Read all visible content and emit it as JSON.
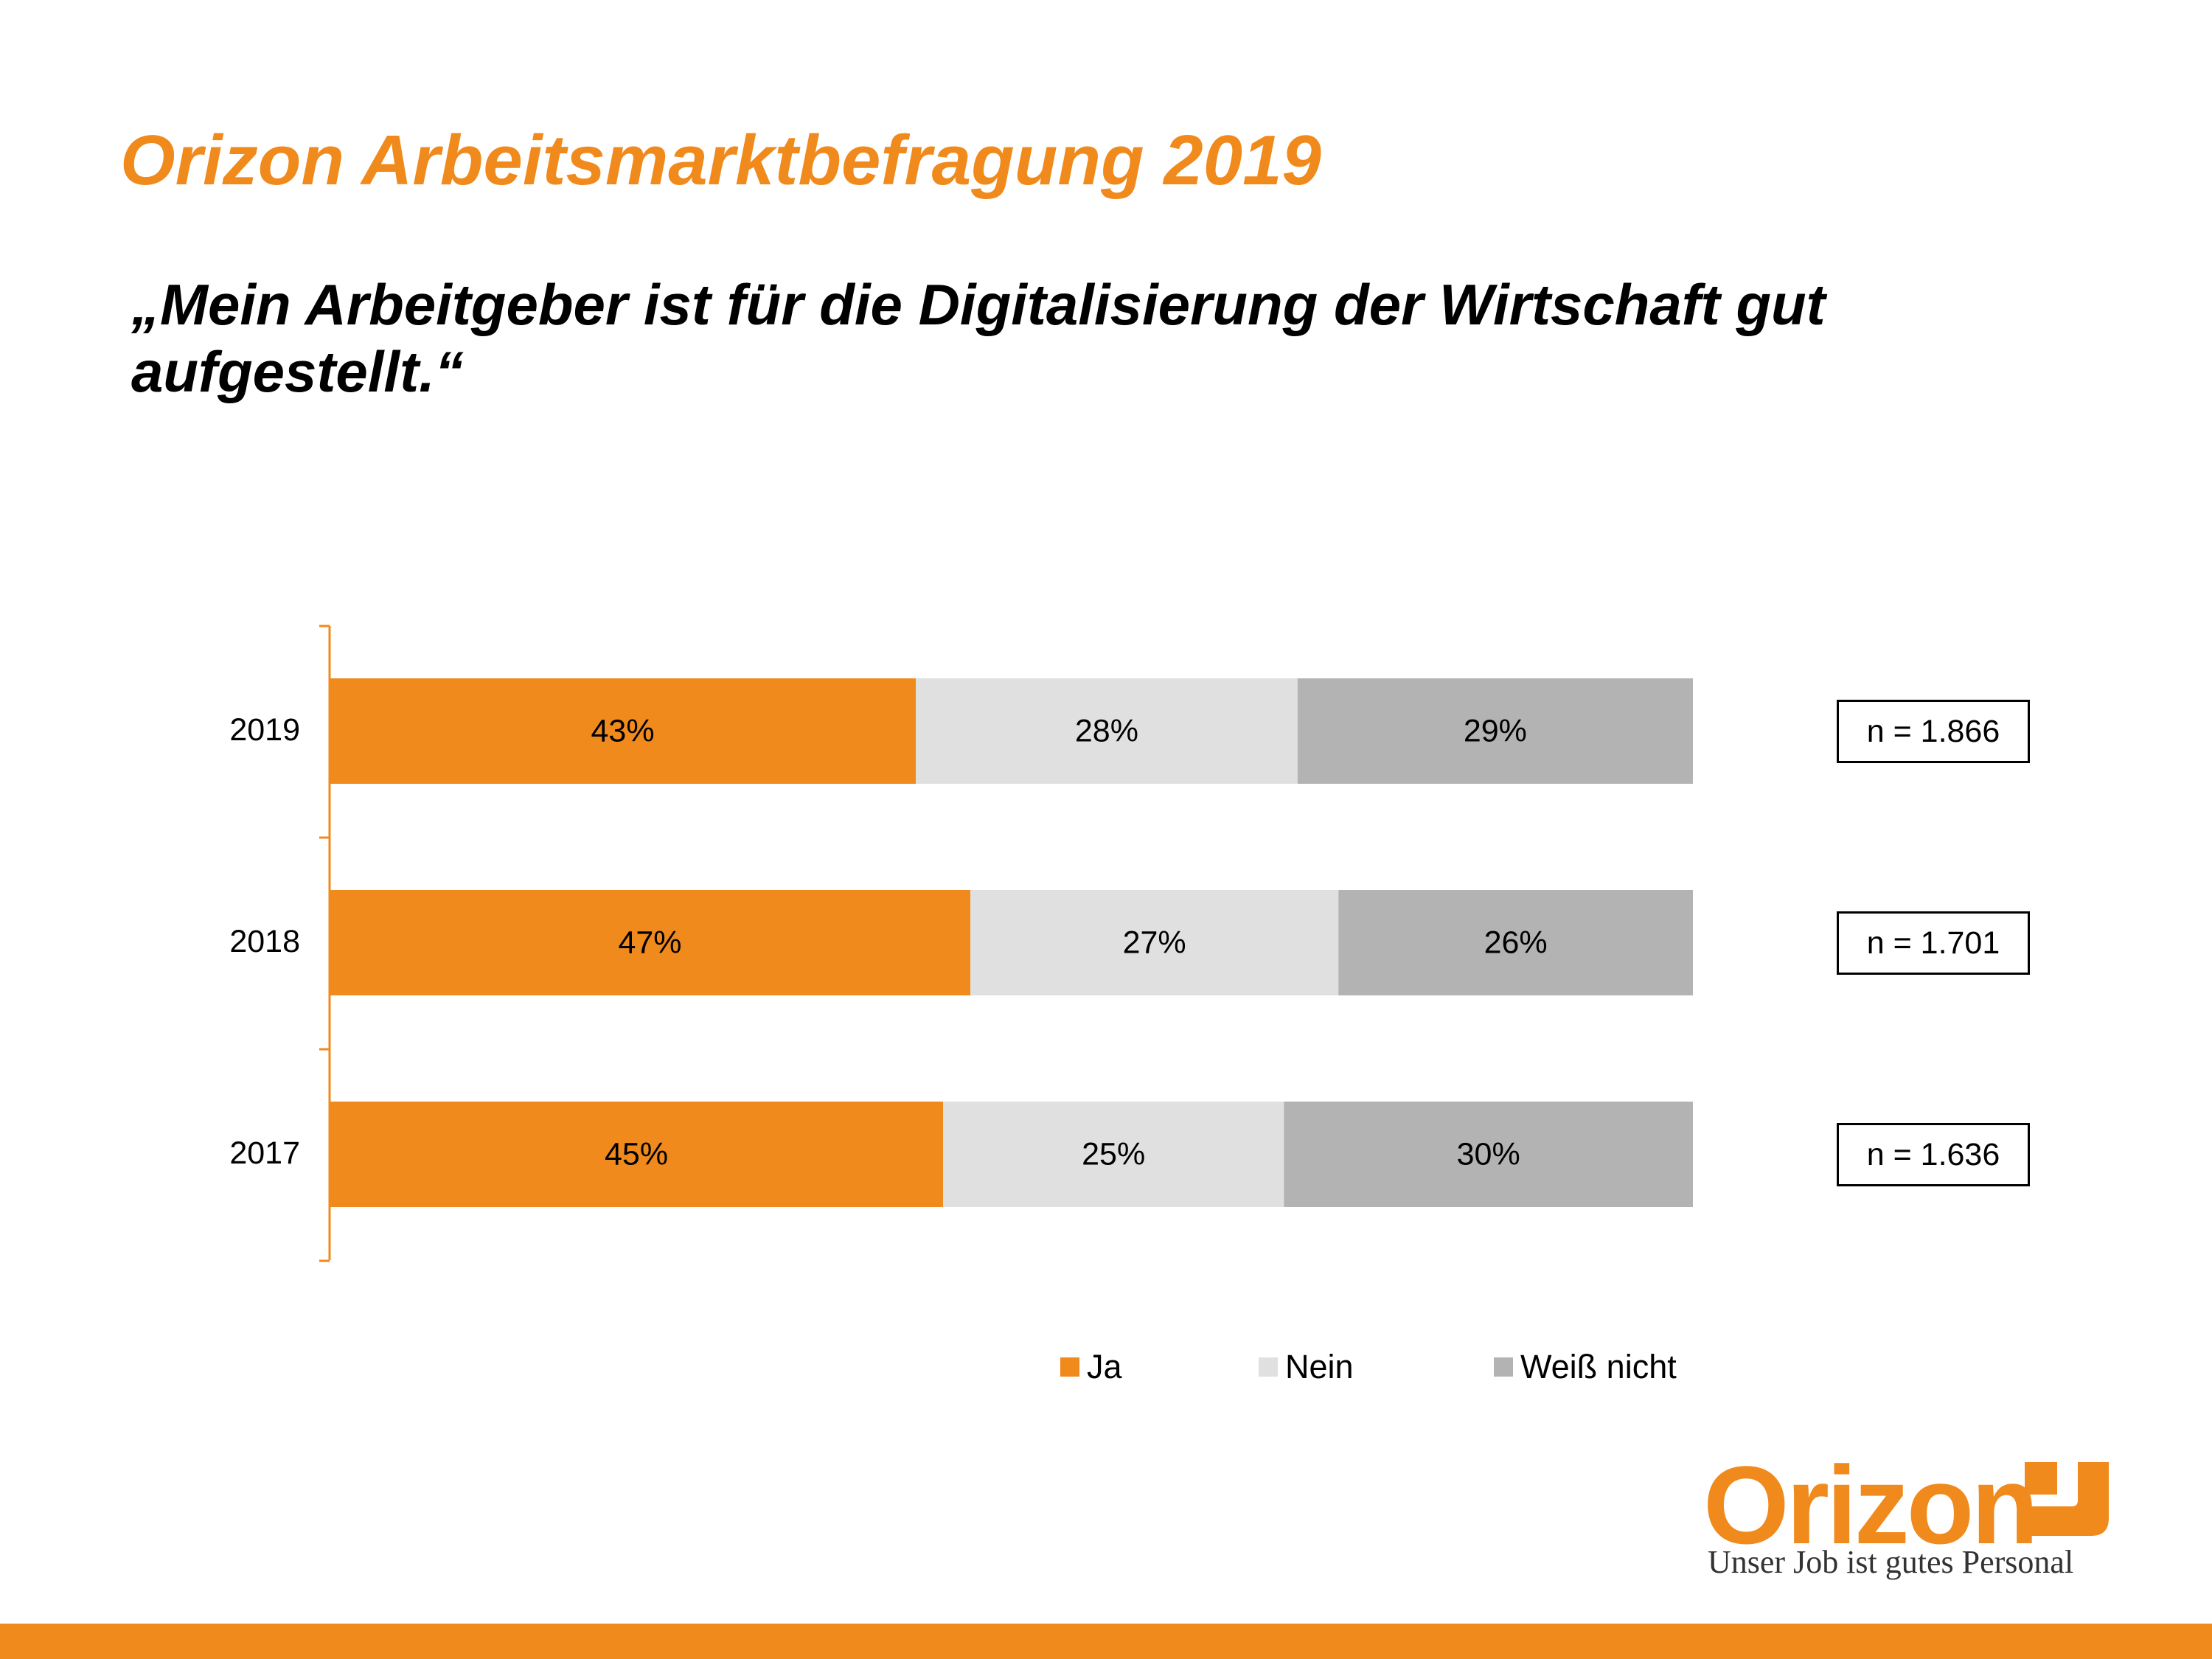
{
  "header": {
    "title": "Orizon Arbeitsmarktbefragung 2019",
    "subtitle": "„Mein Arbeitgeber ist für die Digitalisierung der Wirtschaft gut aufgestellt.“"
  },
  "colors": {
    "accent": "#f08a1c",
    "ja": "#f08a1c",
    "nein": "#e0e0e0",
    "weiss_nicht": "#b3b3b3"
  },
  "chart_data": {
    "type": "bar",
    "orientation": "horizontal",
    "stacked": true,
    "categories": [
      "2019",
      "2018",
      "2017"
    ],
    "series": [
      {
        "name": "Ja",
        "values": [
          43,
          47,
          45
        ],
        "labels": [
          "43%",
          "47%",
          "45%"
        ]
      },
      {
        "name": "Nein",
        "values": [
          28,
          27,
          25
        ],
        "labels": [
          "28%",
          "27%",
          "25%"
        ]
      },
      {
        "name": "Weiß nicht",
        "values": [
          29,
          26,
          30
        ],
        "labels": [
          "29%",
          "26%",
          "30%"
        ]
      }
    ],
    "xlim": [
      0,
      100
    ],
    "grid": false,
    "legend_position": "bottom",
    "sample_sizes": [
      "n = 1.866",
      "n = 1.701",
      "n = 1.636"
    ]
  },
  "logo": {
    "wordmark": "Orizon",
    "tagline": "Unser Job ist gutes Personal"
  }
}
